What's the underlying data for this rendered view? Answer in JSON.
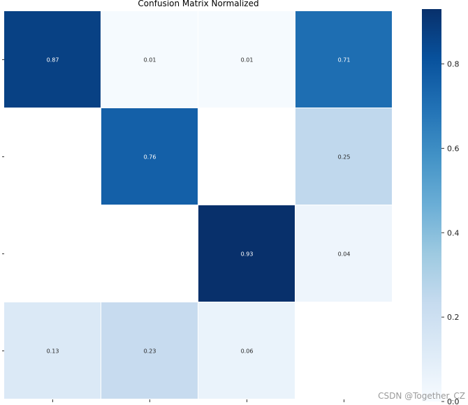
{
  "chart_data": {
    "type": "heatmap",
    "title": "Confusion Matrix Normalized",
    "xlabel": "",
    "ylabel": "",
    "rows": 4,
    "cols": 4,
    "cells": [
      {
        "row": 0,
        "col": 0,
        "value": 0.87,
        "label": "0.87"
      },
      {
        "row": 0,
        "col": 1,
        "value": 0.01,
        "label": "0.01"
      },
      {
        "row": 0,
        "col": 2,
        "value": 0.01,
        "label": "0.01"
      },
      {
        "row": 0,
        "col": 3,
        "value": 0.71,
        "label": "0.71"
      },
      {
        "row": 1,
        "col": 1,
        "value": 0.76,
        "label": "0.76"
      },
      {
        "row": 1,
        "col": 3,
        "value": 0.25,
        "label": "0.25"
      },
      {
        "row": 2,
        "col": 2,
        "value": 0.93,
        "label": "0.93"
      },
      {
        "row": 2,
        "col": 3,
        "value": 0.04,
        "label": "0.04"
      },
      {
        "row": 3,
        "col": 0,
        "value": 0.13,
        "label": "0.13"
      },
      {
        "row": 3,
        "col": 1,
        "value": 0.23,
        "label": "0.23"
      },
      {
        "row": 3,
        "col": 2,
        "value": 0.06,
        "label": "0.06"
      }
    ],
    "colorbar": {
      "min": 0.0,
      "max": 0.93,
      "ticks": [
        0.0,
        0.2,
        0.4,
        0.6,
        0.8
      ],
      "tick_labels": [
        "0.0",
        "0.2",
        "0.4",
        "0.6",
        "0.8"
      ]
    },
    "colormap": "Blues",
    "grid": false,
    "cell_separator_color": "#ffffff"
  },
  "watermark": "CSDN @Together_CZ"
}
